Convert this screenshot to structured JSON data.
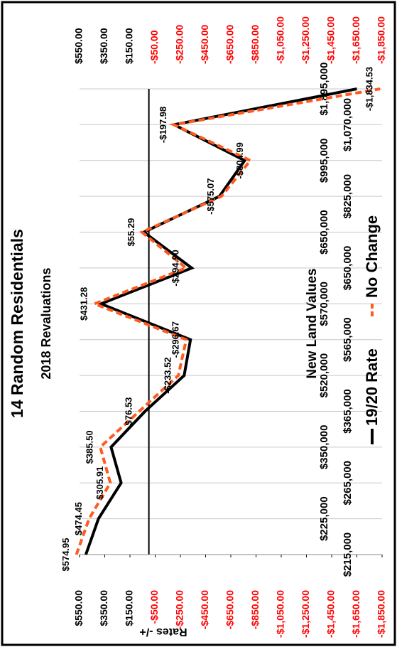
{
  "chart_data": {
    "type": "line",
    "title": "14 Random Residentials",
    "subtitle": "2018 Revaluations",
    "x_label": "New Land Values",
    "y_label": "Rates -/+",
    "categories": [
      "$215,000",
      "$225,000",
      "$265,000",
      "$350,000",
      "$365,000",
      "$520,000",
      "$565,000",
      "$570,000",
      "$650,000",
      "$650,000",
      "$825,000",
      "$995,000",
      "$1,070,000",
      "$1,895,000"
    ],
    "series": [
      {
        "name": "19/20 Rate",
        "color": "#000000",
        "dash": false,
        "values": [
          500,
          400,
          220,
          300,
          30,
          -280,
          -330,
          380,
          -340,
          40,
          -560,
          -760,
          -200,
          -1650
        ]
      },
      {
        "name": "No Change",
        "color": "#ff5a1f",
        "dash": true,
        "values": [
          574.95,
          474.45,
          305.91,
          385.5,
          76.53,
          -233.52,
          -296.67,
          431.28,
          -294.9,
          55.29,
          -575.07,
          -804.99,
          -197.98,
          -1834.53
        ],
        "value_labels": [
          "$574.95",
          "$474.45",
          "$305.91",
          "$385.50",
          "$76.53",
          "-$233.52",
          "-$296.67",
          "$431.28",
          "-$294.90",
          "$55.29",
          "-$575.07",
          "-$804.99",
          "-$197.98",
          "-$1,834.53"
        ]
      }
    ],
    "ylim": [
      -1850,
      550
    ],
    "yticks": [
      {
        "value": 550,
        "label": "$550.00"
      },
      {
        "value": 350,
        "label": "$350.00"
      },
      {
        "value": 150,
        "label": "$150.00"
      },
      {
        "value": -50,
        "label": "-$50.00"
      },
      {
        "value": -250,
        "label": "-$250.00"
      },
      {
        "value": -450,
        "label": "-$450.00"
      },
      {
        "value": -650,
        "label": "-$650.00"
      },
      {
        "value": -850,
        "label": "-$850.00"
      },
      {
        "value": -1050,
        "label": "-$1,050.00"
      },
      {
        "value": -1250,
        "label": "-$1,250.00"
      },
      {
        "value": -1450,
        "label": "-$1,450.00"
      },
      {
        "value": -1650,
        "label": "-$1,650.00"
      },
      {
        "value": -1850,
        "label": "-$1,850.00"
      }
    ],
    "negative_tick_color": "#ff0000",
    "grid": true
  }
}
